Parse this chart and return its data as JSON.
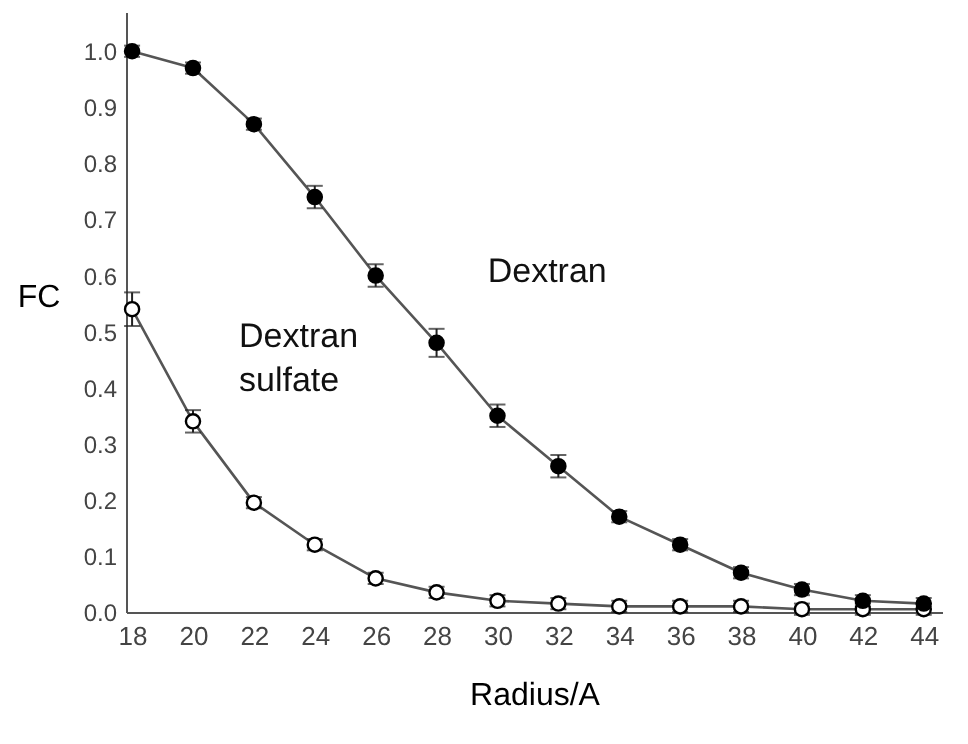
{
  "chart_data": {
    "type": "line",
    "xlabel": "Radius/A",
    "ylabel": "FC",
    "x": [
      18,
      20,
      22,
      24,
      26,
      28,
      30,
      32,
      34,
      36,
      38,
      40,
      42,
      44
    ],
    "series": [
      {
        "name": "Dextran",
        "color": "#000000",
        "values": [
          1.0,
          0.97,
          0.87,
          0.74,
          0.6,
          0.48,
          0.35,
          0.26,
          0.17,
          0.12,
          0.07,
          0.04,
          0.02,
          0.015
        ],
        "errors": [
          0.01,
          0.01,
          0.01,
          0.02,
          0.02,
          0.025,
          0.02,
          0.02,
          0.01,
          0.01,
          0.01,
          0.01,
          0.01,
          0.01
        ]
      },
      {
        "name": "Dextran sulfate",
        "color": "#ffffff",
        "values": [
          0.54,
          0.34,
          0.195,
          0.12,
          0.06,
          0.035,
          0.02,
          0.015,
          0.01,
          0.01,
          0.01,
          0.005,
          0.005,
          0.005
        ],
        "errors": [
          0.03,
          0.02,
          0.01,
          0.01,
          0.01,
          0.01,
          0.01,
          0.01,
          0.01,
          0.01,
          0.01,
          0.01,
          0.01,
          0.01
        ]
      }
    ],
    "xlim": [
      17.8,
      44.6
    ],
    "ylim": [
      0,
      1.07
    ],
    "xticks": [
      18,
      20,
      22,
      24,
      26,
      28,
      30,
      32,
      34,
      36,
      38,
      40,
      42,
      44
    ],
    "yticks": [
      {
        "value": 0,
        "label": "0.0"
      },
      {
        "value": 0.1,
        "label": "0.1"
      },
      {
        "value": 0.2,
        "label": "0.2"
      },
      {
        "value": 0.3,
        "label": "0.3"
      },
      {
        "value": 0.4,
        "label": "0.4"
      },
      {
        "value": 0.5,
        "label": "0.5"
      },
      {
        "value": 0.6,
        "label": "0.6"
      },
      {
        "value": 0.7,
        "label": "0.7"
      },
      {
        "value": 0.8,
        "label": "0.8"
      },
      {
        "value": 0.9,
        "label": "0.9"
      },
      {
        "value": 1,
        "label": "1.0"
      }
    ],
    "marker": "circle",
    "line_style": "solid",
    "grid": false,
    "legend": false
  }
}
